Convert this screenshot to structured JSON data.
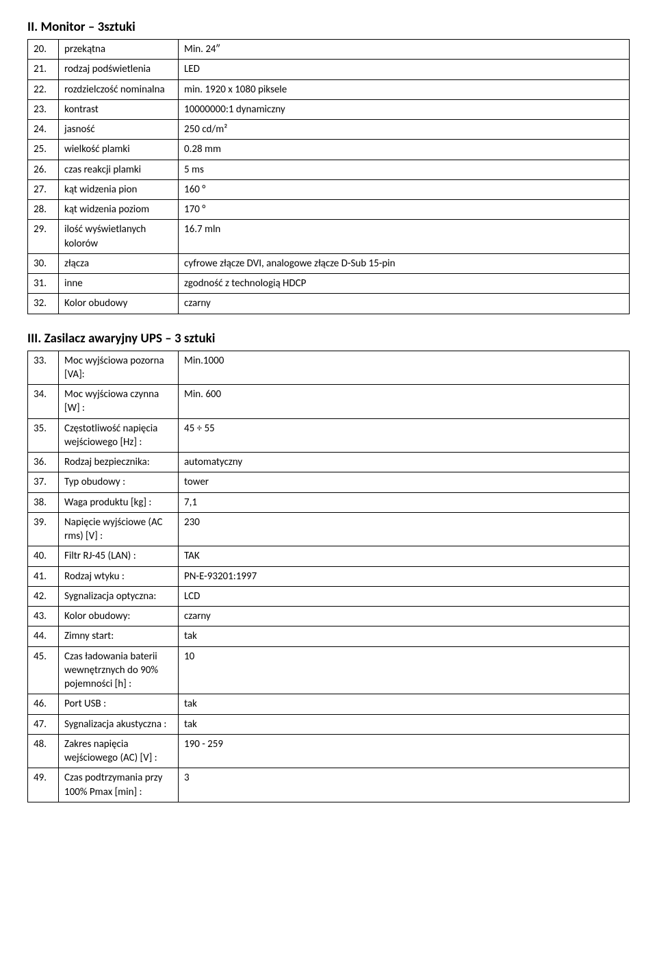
{
  "section1": {
    "heading": "II. Monitor – 3sztuki",
    "rows": [
      {
        "n": "20.",
        "label": "przekątna",
        "val": "Min. 24″"
      },
      {
        "n": "21.",
        "label": "rodzaj podświetlenia",
        "val": "LED"
      },
      {
        "n": "22.",
        "label": "rozdzielczość nominalna",
        "val": "min. 1920 x 1080 piksele"
      },
      {
        "n": "23.",
        "label": "kontrast",
        "val": "10000000:1 dynamiczny"
      },
      {
        "n": "24.",
        "label": "jasność",
        "val": "250 cd/m²"
      },
      {
        "n": "25.",
        "label": "wielkość plamki",
        "val": "0.28 mm"
      },
      {
        "n": "26.",
        "label": "czas reakcji plamki",
        "val": "5 ms"
      },
      {
        "n": "27.",
        "label": "kąt widzenia pion",
        "val": "160 °"
      },
      {
        "n": "28.",
        "label": "kąt widzenia poziom",
        "val": "170 °"
      },
      {
        "n": "29.",
        "label": "ilość wyświetlanych kolorów",
        "val": "16.7 mln"
      },
      {
        "n": "30.",
        "label": "złącza",
        "val": "cyfrowe złącze DVI, analogowe złącze D-Sub 15-pin"
      },
      {
        "n": "31.",
        "label": "inne",
        "val": "zgodność z technologią HDCP"
      },
      {
        "n": "32.",
        "label": "Kolor obudowy",
        "val": "czarny"
      }
    ]
  },
  "section2": {
    "heading": "III. Zasilacz awaryjny UPS – 3 sztuki",
    "rows": [
      {
        "n": "33.",
        "label": "Moc wyjściowa pozorna [VA]:",
        "val": "Min.1000"
      },
      {
        "n": "34.",
        "label": "Moc wyjściowa czynna [W] :",
        "val": "Min. 600"
      },
      {
        "n": "35.",
        "label": "Częstotliwość napięcia wejściowego [Hz] :",
        "val": "45 ÷ 55"
      },
      {
        "n": "36.",
        "label": "Rodzaj bezpiecznika:",
        "val": "automatyczny"
      },
      {
        "n": "37.",
        "label": "Typ obudowy :",
        "val": "tower"
      },
      {
        "n": "38.",
        "label": "Waga produktu [kg] :",
        "val": "7,1"
      },
      {
        "n": "39.",
        "label": "Napięcie wyjściowe (AC rms) [V] :",
        "val": "230"
      },
      {
        "n": "40.",
        "label": "Filtr RJ-45 (LAN) :",
        "val": "TAK"
      },
      {
        "n": "41.",
        "label": "Rodzaj wtyku :",
        "val": "PN-E-93201:1997"
      },
      {
        "n": "42.",
        "label": "Sygnalizacja optyczna:",
        "val": "LCD"
      },
      {
        "n": "43.",
        "label": "Kolor obudowy:",
        "val": "czarny"
      },
      {
        "n": "44.",
        "label": "Zimny start:",
        "val": "tak"
      },
      {
        "n": "45.",
        "label": "Czas ładowania baterii wewnętrznych do 90% pojemności [h] :",
        "val": "10"
      },
      {
        "n": "46.",
        "label": "Port USB :",
        "val": "tak"
      },
      {
        "n": "47.",
        "label": "Sygnalizacja akustyczna :",
        "val": "tak"
      },
      {
        "n": "48.",
        "label": "Zakres napięcia wejściowego (AC) [V] :",
        "val": "190 - 259"
      },
      {
        "n": "49.",
        "label": "Czas podtrzymania przy 100% Pmax [min] :",
        "val": "3"
      }
    ]
  }
}
